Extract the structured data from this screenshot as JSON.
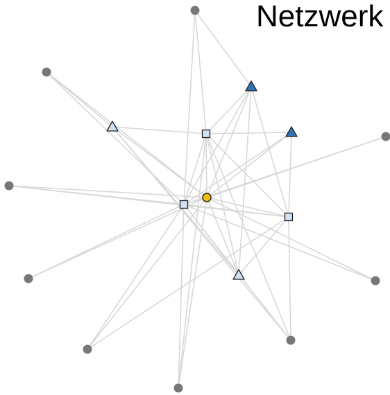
{
  "title": "Netzwerk",
  "colors": {
    "edge": "#d8d8d8",
    "peripheral": "#777777",
    "square": "#cfe2f3",
    "triangle_light": "#cfe2f3",
    "triangle_dark": "#2e75b6",
    "center": "#f2c00a",
    "stroke": "#1f1f1f"
  },
  "nodes": [
    {
      "id": "p-top",
      "shape": "circle",
      "fill": "peripheral"
    },
    {
      "id": "p-upper-left",
      "shape": "circle",
      "fill": "peripheral"
    },
    {
      "id": "p-left",
      "shape": "circle",
      "fill": "peripheral"
    },
    {
      "id": "p-lower-left",
      "shape": "circle",
      "fill": "peripheral"
    },
    {
      "id": "p-bottom-left",
      "shape": "circle",
      "fill": "peripheral"
    },
    {
      "id": "p-bottom",
      "shape": "circle",
      "fill": "peripheral"
    },
    {
      "id": "p-bottom-right",
      "shape": "circle",
      "fill": "peripheral"
    },
    {
      "id": "p-lower-right",
      "shape": "circle",
      "fill": "peripheral"
    },
    {
      "id": "p-right",
      "shape": "circle",
      "fill": "peripheral"
    },
    {
      "id": "tri-dark-1",
      "shape": "triangle",
      "fill": "triangle_dark"
    },
    {
      "id": "tri-dark-2",
      "shape": "triangle",
      "fill": "triangle_dark"
    },
    {
      "id": "tri-light-1",
      "shape": "triangle",
      "fill": "triangle_light"
    },
    {
      "id": "tri-light-2",
      "shape": "triangle",
      "fill": "triangle_light"
    },
    {
      "id": "sq-top",
      "shape": "square",
      "fill": "square"
    },
    {
      "id": "sq-center",
      "shape": "square",
      "fill": "square"
    },
    {
      "id": "sq-right",
      "shape": "square",
      "fill": "square"
    },
    {
      "id": "center",
      "shape": "circle-outlined",
      "fill": "center"
    }
  ],
  "edges": [
    [
      "p-top",
      "sq-top"
    ],
    [
      "p-top",
      "sq-center"
    ],
    [
      "p-top",
      "tri-dark-1"
    ],
    [
      "p-upper-left",
      "sq-center"
    ],
    [
      "p-upper-left",
      "center"
    ],
    [
      "p-upper-left",
      "tri-light-1"
    ],
    [
      "p-left",
      "sq-center"
    ],
    [
      "p-left",
      "center"
    ],
    [
      "p-left",
      "sq-right"
    ],
    [
      "p-lower-left",
      "sq-center"
    ],
    [
      "p-lower-left",
      "center"
    ],
    [
      "p-bottom-left",
      "sq-center"
    ],
    [
      "p-bottom-left",
      "center"
    ],
    [
      "p-bottom-left",
      "sq-right"
    ],
    [
      "p-bottom",
      "sq-center"
    ],
    [
      "p-bottom",
      "center"
    ],
    [
      "p-bottom",
      "sq-top"
    ],
    [
      "p-bottom-right",
      "sq-center"
    ],
    [
      "p-bottom-right",
      "sq-top"
    ],
    [
      "p-bottom-right",
      "tri-light-1"
    ],
    [
      "p-bottom-right",
      "sq-right"
    ],
    [
      "p-lower-right",
      "center"
    ],
    [
      "p-lower-right",
      "sq-center"
    ],
    [
      "p-right",
      "center"
    ],
    [
      "p-right",
      "sq-center"
    ],
    [
      "tri-light-1",
      "sq-top"
    ],
    [
      "tri-light-1",
      "center"
    ],
    [
      "tri-light-1",
      "tri-light-2"
    ],
    [
      "sq-top",
      "tri-dark-2"
    ],
    [
      "sq-top",
      "tri-dark-1"
    ],
    [
      "sq-top",
      "sq-center"
    ],
    [
      "sq-top",
      "sq-right"
    ],
    [
      "sq-top",
      "center"
    ],
    [
      "sq-top",
      "tri-light-2"
    ],
    [
      "tri-dark-1",
      "sq-center"
    ],
    [
      "tri-dark-1",
      "center"
    ],
    [
      "tri-dark-1",
      "tri-light-2"
    ],
    [
      "tri-dark-1",
      "sq-right"
    ],
    [
      "tri-dark-2",
      "sq-center"
    ],
    [
      "tri-dark-2",
      "center"
    ],
    [
      "tri-dark-2",
      "sq-right"
    ],
    [
      "sq-center",
      "sq-right"
    ],
    [
      "sq-center",
      "tri-light-2"
    ],
    [
      "sq-center",
      "center"
    ],
    [
      "center",
      "sq-right"
    ],
    [
      "center",
      "tri-light-2"
    ],
    [
      "sq-right",
      "tri-light-2"
    ]
  ]
}
